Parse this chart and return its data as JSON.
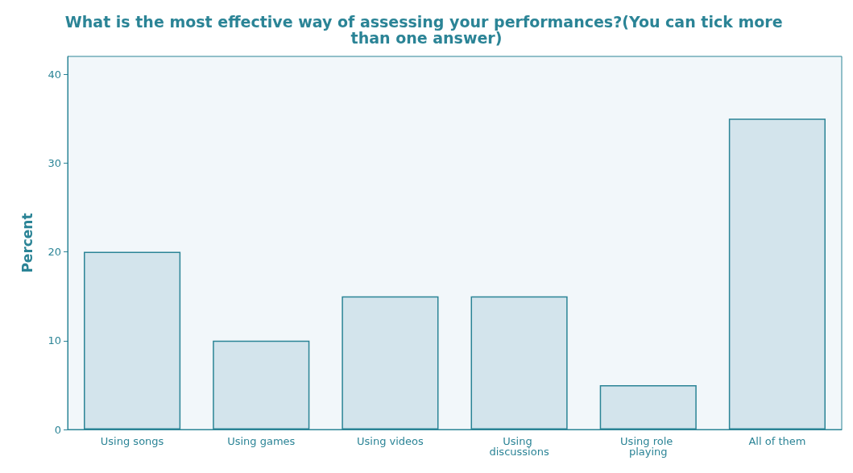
{
  "chart_data": {
    "type": "bar",
    "title": "What is the most effective way of assessing your performances?(You can tick more than one answer)",
    "ylabel": "Percent",
    "categories": [
      "Using songs",
      "Using games",
      "Using videos",
      "Using discussions",
      "Using role playing",
      "All of them"
    ],
    "values": [
      20,
      10,
      15,
      15,
      5,
      35
    ],
    "color": "#d3e4ec",
    "ylim": [
      0,
      42
    ],
    "yticks": [
      0,
      10,
      20,
      30,
      40
    ],
    "grid": false
  }
}
